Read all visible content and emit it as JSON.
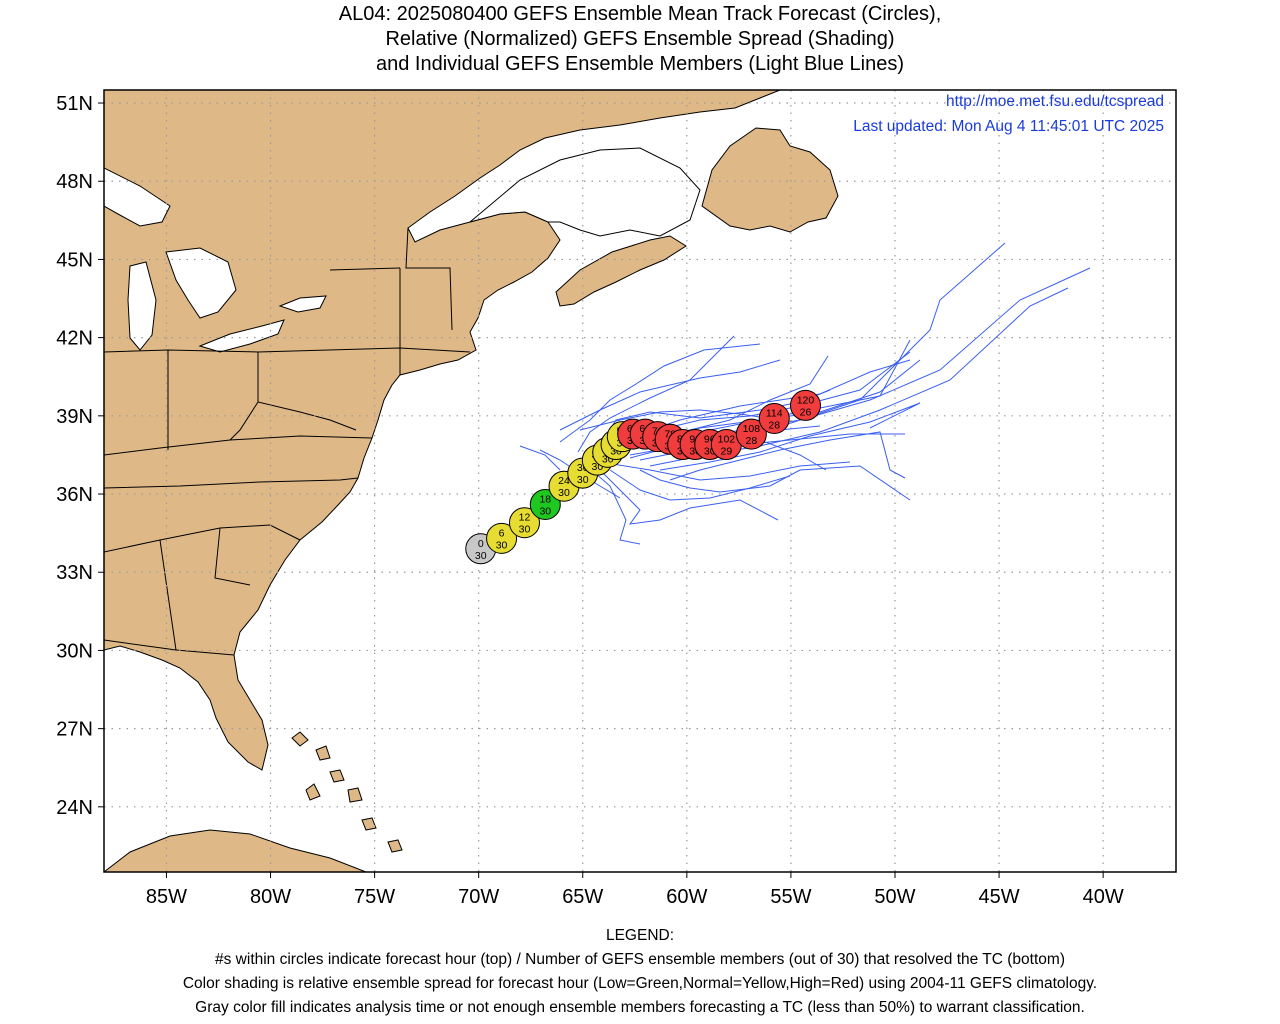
{
  "title": {
    "line1": "AL04: 2025080400 GEFS Ensemble Mean Track Forecast (Circles),",
    "line2": "Relative (Normalized) GEFS Ensemble Spread (Shading)",
    "line3": "and Individual GEFS Ensemble Members (Light Blue Lines)"
  },
  "credit": {
    "url": "http://moe.met.fsu.edu/tcspread",
    "updated": "Last updated: Mon Aug 4 11:45:01 UTC 2025"
  },
  "axes": {
    "lon_range": [
      -88.0,
      -36.5
    ],
    "lat_range": [
      21.5,
      51.5
    ],
    "lon_ticks": [
      {
        "value": -85,
        "label": "85W"
      },
      {
        "value": -80,
        "label": "80W"
      },
      {
        "value": -75,
        "label": "75W"
      },
      {
        "value": -70,
        "label": "70W"
      },
      {
        "value": -65,
        "label": "65W"
      },
      {
        "value": -60,
        "label": "60W"
      },
      {
        "value": -55,
        "label": "55W"
      },
      {
        "value": -50,
        "label": "50W"
      },
      {
        "value": -45,
        "label": "45W"
      },
      {
        "value": -40,
        "label": "40W"
      }
    ],
    "lat_ticks": [
      {
        "value": 51,
        "label": "51N"
      },
      {
        "value": 48,
        "label": "48N"
      },
      {
        "value": 45,
        "label": "45N"
      },
      {
        "value": 42,
        "label": "42N"
      },
      {
        "value": 39,
        "label": "39N"
      },
      {
        "value": 36,
        "label": "36N"
      },
      {
        "value": 33,
        "label": "33N"
      },
      {
        "value": 30,
        "label": "30N"
      },
      {
        "value": 27,
        "label": "27N"
      },
      {
        "value": 24,
        "label": "24N"
      }
    ],
    "grid": "dotted"
  },
  "colors": {
    "land": "#deb887",
    "ocean": "#ffffff",
    "member_track": "#3a5ff0",
    "gray": "#c8c8c8",
    "green": "#1ec81e",
    "yellow": "#e6dc32",
    "red": "#f03c3c",
    "credit_text": "#1a3adb"
  },
  "mean_track": [
    {
      "hour": "0",
      "members": "30",
      "lon": -69.9,
      "lat": 33.9,
      "color": "gray"
    },
    {
      "hour": "6",
      "members": "30",
      "lon": -68.9,
      "lat": 34.3,
      "color": "yellow"
    },
    {
      "hour": "12",
      "members": "30",
      "lon": -67.8,
      "lat": 34.9,
      "color": "yellow"
    },
    {
      "hour": "18",
      "members": "30",
      "lon": -66.8,
      "lat": 35.6,
      "color": "green"
    },
    {
      "hour": "24",
      "members": "30",
      "lon": -65.9,
      "lat": 36.3,
      "color": "yellow"
    },
    {
      "hour": "30",
      "members": "30",
      "lon": -65.0,
      "lat": 36.8,
      "color": "yellow"
    },
    {
      "hour": "36",
      "members": "30",
      "lon": -64.3,
      "lat": 37.3,
      "color": "yellow"
    },
    {
      "hour": "42",
      "members": "30",
      "lon": -63.8,
      "lat": 37.6,
      "color": "yellow"
    },
    {
      "hour": "48",
      "members": "30",
      "lon": -63.4,
      "lat": 37.9,
      "color": "yellow"
    },
    {
      "hour": "54",
      "members": "30",
      "lon": -63.1,
      "lat": 38.2,
      "color": "yellow"
    },
    {
      "hour": "60",
      "members": "30",
      "lon": -62.6,
      "lat": 38.3,
      "color": "red"
    },
    {
      "hour": "66",
      "members": "30",
      "lon": -62.0,
      "lat": 38.3,
      "color": "red"
    },
    {
      "hour": "72",
      "members": "30",
      "lon": -61.4,
      "lat": 38.2,
      "color": "red"
    },
    {
      "hour": "78",
      "members": "30",
      "lon": -60.8,
      "lat": 38.1,
      "color": "red"
    },
    {
      "hour": "84",
      "members": "30",
      "lon": -60.2,
      "lat": 37.9,
      "color": "red"
    },
    {
      "hour": "90",
      "members": "30",
      "lon": -59.6,
      "lat": 37.9,
      "color": "red"
    },
    {
      "hour": "96",
      "members": "30",
      "lon": -58.9,
      "lat": 37.9,
      "color": "red"
    },
    {
      "hour": "102",
      "members": "29",
      "lon": -58.1,
      "lat": 37.9,
      "color": "red"
    },
    {
      "hour": "108",
      "members": "28",
      "lon": -56.9,
      "lat": 38.3,
      "color": "red"
    },
    {
      "hour": "114",
      "members": "28",
      "lon": -55.8,
      "lat": 38.9,
      "color": "red"
    },
    {
      "hour": "120",
      "members": "26",
      "lon": -54.3,
      "lat": 39.4,
      "color": "red"
    }
  ],
  "legend": {
    "heading": "LEGEND:",
    "line1": "#s within circles indicate forecast hour (top) / Number of GEFS ensemble members (out of 30) that resolved the TC (bottom)",
    "line2": "Color shading is relative ensemble spread for forecast hour (Low=Green,Normal=Yellow,High=Red) using 2004-11 GEFS climatology.",
    "line3": "Gray color fill indicates analysis time or not enough ensemble members forecasting a TC (less than 50%) to warrant classification."
  }
}
